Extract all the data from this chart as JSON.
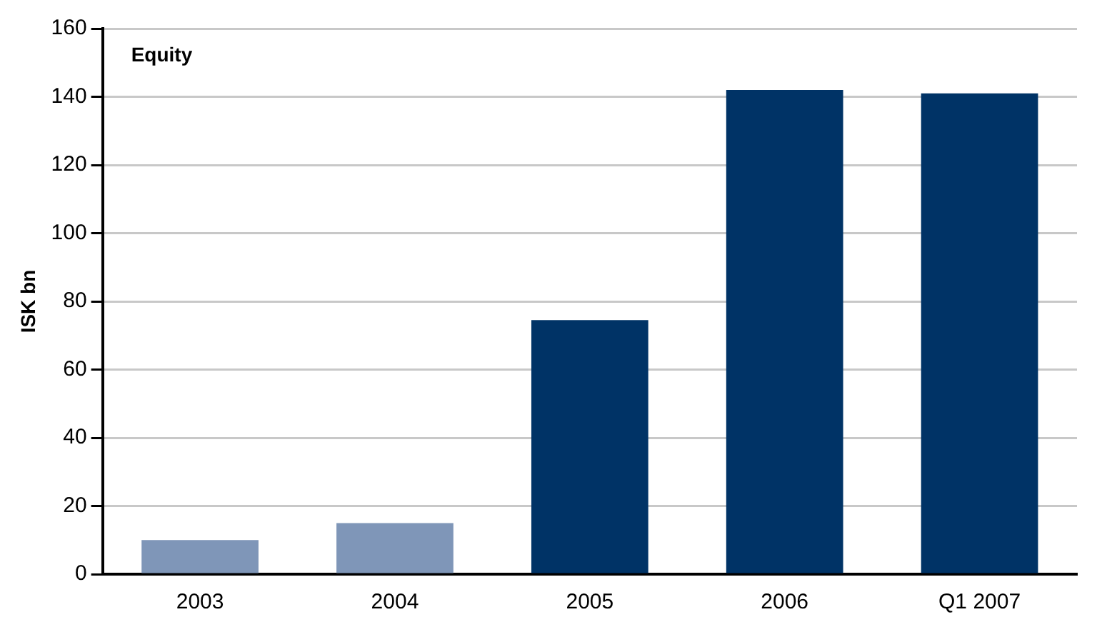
{
  "chart_data": {
    "type": "bar",
    "title": "Equity",
    "ylabel": "ISK bn",
    "categories": [
      "2003",
      "2004",
      "2005",
      "2006",
      "Q1 2007"
    ],
    "values": [
      10,
      15,
      74.5,
      142,
      141
    ],
    "colors": [
      "#7f96b8",
      "#7f96b8",
      "#003366",
      "#003366",
      "#003366"
    ],
    "ylim": [
      0,
      160
    ],
    "yticks": [
      0,
      20,
      40,
      60,
      80,
      100,
      120,
      140,
      160
    ],
    "grid": "y",
    "legend": false
  }
}
